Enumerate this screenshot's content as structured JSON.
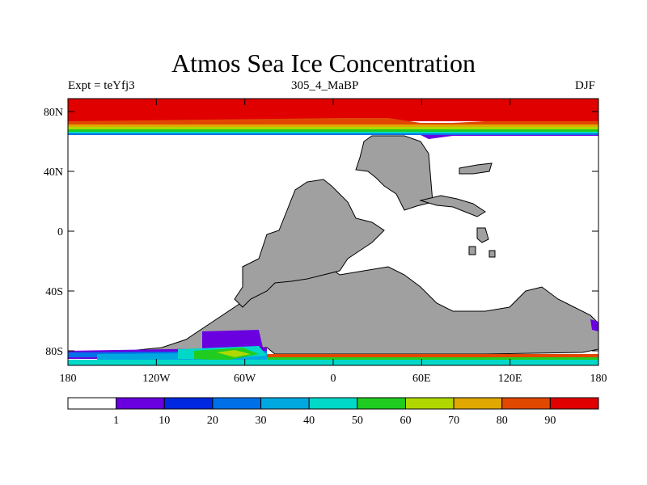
{
  "title": "Atmos Sea Ice Concentration",
  "left_subtitle": "Expt = teYfj3",
  "center_subtitle": "305_4_MaBP",
  "right_subtitle": "DJF",
  "x_ticks": [
    "180",
    "120W",
    "60W",
    "0",
    "60E",
    "120E",
    "180"
  ],
  "y_ticks": [
    "80N",
    "40N",
    "0",
    "40S",
    "80S"
  ],
  "legend": {
    "labels": [
      "1",
      "10",
      "20",
      "30",
      "40",
      "50",
      "60",
      "70",
      "80",
      "90"
    ],
    "colors": [
      "#ffffff",
      "#6a00e0",
      "#0028e0",
      "#0070e8",
      "#00a8e0",
      "#00d8c8",
      "#20cc20",
      "#b0d800",
      "#e0a800",
      "#e04800",
      "#e00000"
    ]
  },
  "colors": {
    "land": "#a0a0a0",
    "ice_max": "#e00000"
  }
}
